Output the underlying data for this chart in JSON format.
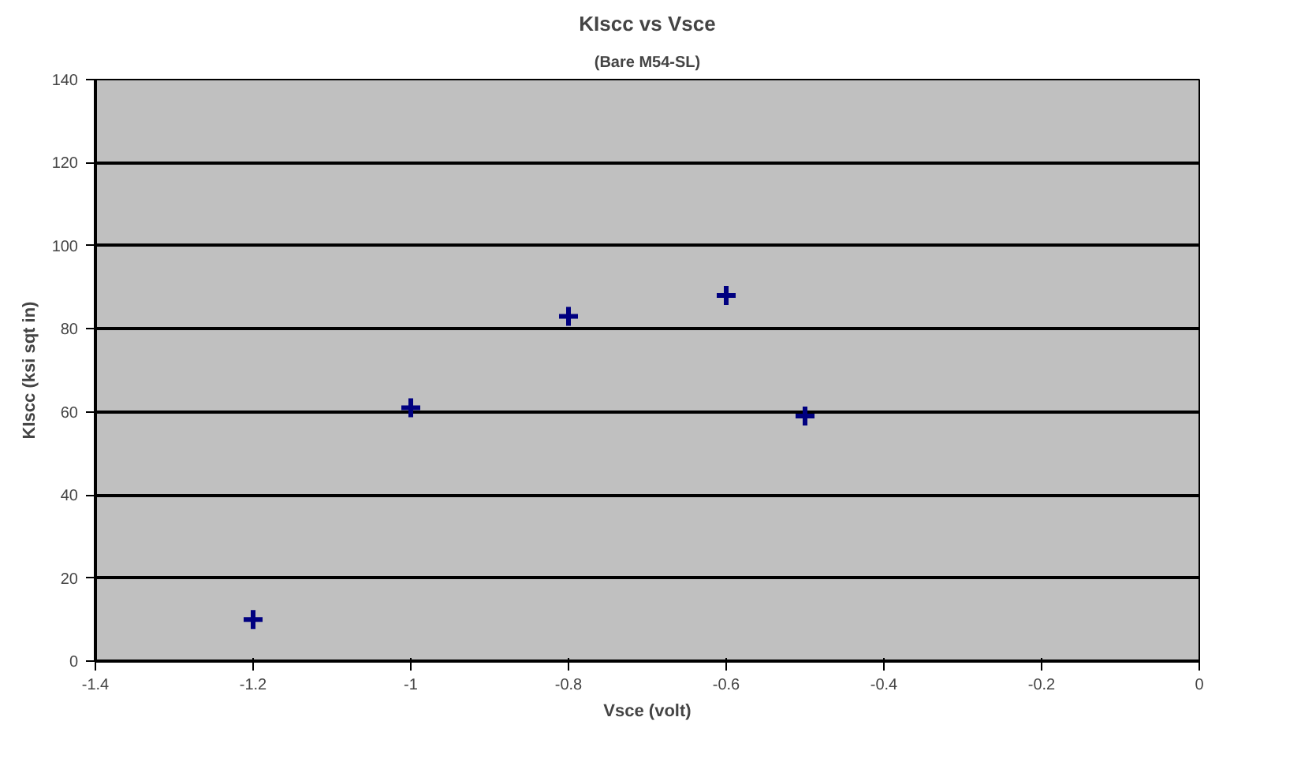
{
  "chart_data": {
    "type": "scatter",
    "title": "KIscc vs Vsce",
    "subtitle": "(Bare M54-SL)",
    "xlabel": "Vsce (volt)",
    "ylabel": "KIscc (ksi sqt in)",
    "x": [
      -1.2,
      -1.0,
      -0.8,
      -0.6,
      -0.5
    ],
    "series": [
      {
        "color": "#000080",
        "values": [
          10,
          61,
          83,
          88,
          59
        ]
      }
    ],
    "xlim": [
      -1.4,
      0
    ],
    "xticks": [
      -1.4,
      -1.2,
      -1,
      -0.8,
      -0.6,
      -0.4,
      -0.2,
      0
    ],
    "ylim": [
      0,
      140
    ],
    "yticks": [
      0,
      20,
      40,
      60,
      80,
      100,
      120,
      140
    ],
    "grid": "y",
    "marker": "cross"
  }
}
